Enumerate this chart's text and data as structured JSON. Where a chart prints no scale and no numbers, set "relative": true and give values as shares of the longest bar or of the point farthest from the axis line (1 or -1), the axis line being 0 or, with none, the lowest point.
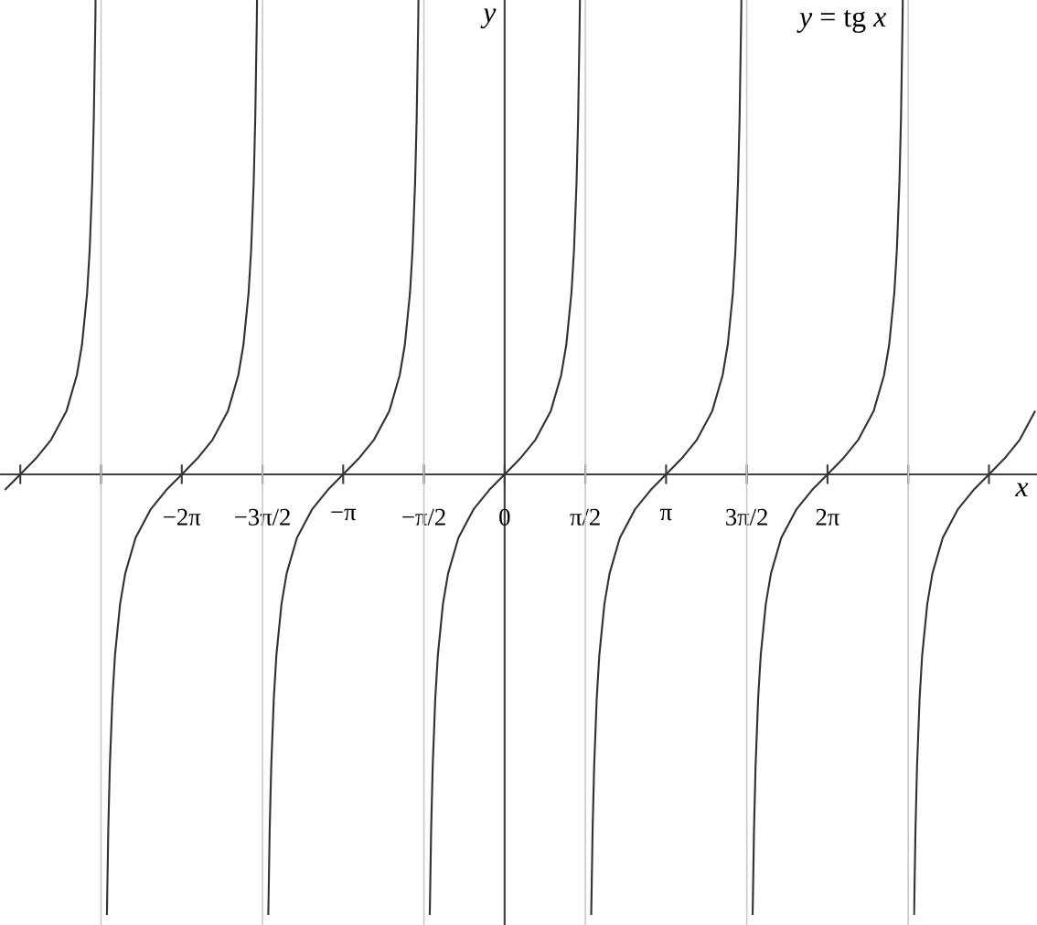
{
  "chart_data": {
    "type": "line",
    "title": "*y* = tg *x*",
    "xlabel": "*x*",
    "ylabel": "*y*",
    "relative": true,
    "xlim": [
      -9.82,
      10.36
    ],
    "xticks": [
      {
        "value": -9.425,
        "label": null
      },
      {
        "value": -7.854,
        "label": null
      },
      {
        "value": -6.283,
        "label": "−2π"
      },
      {
        "value": -4.712,
        "label": "−3π/2"
      },
      {
        "value": -3.142,
        "label": "−π"
      },
      {
        "value": -1.571,
        "label": "−π/2"
      },
      {
        "value": 0,
        "label": "0"
      },
      {
        "value": 1.571,
        "label": "π/2"
      },
      {
        "value": 3.142,
        "label": "π"
      },
      {
        "value": 4.712,
        "label": "3π/2"
      },
      {
        "value": 6.283,
        "label": "2π"
      },
      {
        "value": 7.854,
        "label": null
      },
      {
        "value": 9.425,
        "label": null
      }
    ],
    "ref_lines": [
      {
        "axis": "x",
        "value": -7.854,
        "color": "#c8c8c8"
      },
      {
        "axis": "x",
        "value": -4.712,
        "color": "#c8c8c8"
      },
      {
        "axis": "x",
        "value": -1.571,
        "color": "#c8c8c8"
      },
      {
        "axis": "x",
        "value": 1.571,
        "color": "#c8c8c8"
      },
      {
        "axis": "x",
        "value": 4.712,
        "color": "#c8c8c8"
      },
      {
        "axis": "x",
        "value": 7.854,
        "color": "#c8c8c8"
      }
    ],
    "series": [
      {
        "color": "#333333",
        "x": [
          -9.725,
          -9.425,
          -9.125,
          -8.825,
          -8.525,
          -8.325,
          -8.225,
          -8.125,
          -8.075,
          -8.025,
          -7.995,
          -7.965,
          -7.96
        ],
        "values": [
          -0.033,
          0,
          0.033,
          0.073,
          0.134,
          0.209,
          0.273,
          0.382,
          0.473,
          0.616,
          0.749,
          0.953,
          1
        ]
      },
      {
        "color": "#333333",
        "x": [
          -7.74,
          -7.713,
          -7.683,
          -7.633,
          -7.583,
          -7.483,
          -7.383,
          -7.183,
          -6.883,
          -6.583,
          -6.283,
          -5.983,
          -5.683,
          -5.383,
          -5.183,
          -5.083,
          -4.983,
          -4.933,
          -4.883,
          -4.853,
          -4.823,
          -4.818
        ],
        "values": [
          -0.929,
          -0.749,
          -0.616,
          -0.473,
          -0.382,
          -0.273,
          -0.209,
          -0.134,
          -0.073,
          -0.033,
          0,
          0.033,
          0.073,
          0.134,
          0.209,
          0.273,
          0.382,
          0.473,
          0.616,
          0.749,
          0.953,
          1
        ]
      },
      {
        "color": "#333333",
        "x": [
          -4.599,
          -4.572,
          -4.542,
          -4.492,
          -4.442,
          -4.342,
          -4.242,
          -4.042,
          -3.742,
          -3.442,
          -3.142,
          -2.842,
          -2.542,
          -2.242,
          -2.042,
          -1.942,
          -1.842,
          -1.792,
          -1.742,
          -1.712,
          -1.682,
          -1.677
        ],
        "values": [
          -0.929,
          -0.749,
          -0.616,
          -0.473,
          -0.382,
          -0.273,
          -0.209,
          -0.134,
          -0.073,
          -0.033,
          0,
          0.033,
          0.073,
          0.134,
          0.209,
          0.273,
          0.382,
          0.473,
          0.616,
          0.749,
          0.953,
          1
        ]
      },
      {
        "color": "#333333",
        "x": [
          -1.457,
          -1.43,
          -1.4,
          -1.35,
          -1.3,
          -1.2,
          -1.1,
          -0.9,
          -0.6,
          -0.3,
          0,
          0.3,
          0.6,
          0.9,
          1.1,
          1.2,
          1.3,
          1.35,
          1.4,
          1.43,
          1.46,
          1.465
        ],
        "values": [
          -0.929,
          -0.749,
          -0.616,
          -0.473,
          -0.382,
          -0.273,
          -0.209,
          -0.134,
          -0.073,
          -0.033,
          0,
          0.033,
          0.073,
          0.134,
          0.209,
          0.273,
          0.382,
          0.473,
          0.616,
          0.749,
          0.953,
          1
        ]
      },
      {
        "color": "#333333",
        "x": [
          1.685,
          1.712,
          1.742,
          1.792,
          1.842,
          1.942,
          2.042,
          2.242,
          2.542,
          2.842,
          3.142,
          3.442,
          3.742,
          4.042,
          4.242,
          4.342,
          4.442,
          4.492,
          4.542,
          4.572,
          4.602,
          4.607
        ],
        "values": [
          -0.929,
          -0.749,
          -0.616,
          -0.473,
          -0.382,
          -0.273,
          -0.209,
          -0.134,
          -0.073,
          -0.033,
          0,
          0.033,
          0.073,
          0.134,
          0.209,
          0.273,
          0.382,
          0.473,
          0.616,
          0.749,
          0.953,
          1
        ]
      },
      {
        "color": "#333333",
        "x": [
          4.826,
          4.853,
          4.883,
          4.933,
          4.983,
          5.083,
          5.183,
          5.383,
          5.683,
          5.983,
          6.283,
          6.583,
          6.883,
          7.183,
          7.383,
          7.483,
          7.583,
          7.633,
          7.683,
          7.713,
          7.743,
          7.748
        ],
        "values": [
          -0.929,
          -0.749,
          -0.616,
          -0.473,
          -0.382,
          -0.273,
          -0.209,
          -0.134,
          -0.073,
          -0.033,
          0,
          0.033,
          0.073,
          0.134,
          0.209,
          0.273,
          0.382,
          0.473,
          0.616,
          0.749,
          0.953,
          1
        ]
      },
      {
        "color": "#333333",
        "x": [
          7.968,
          7.995,
          8.025,
          8.075,
          8.125,
          8.225,
          8.325,
          8.525,
          8.825,
          9.125,
          9.425,
          9.725,
          10.025,
          10.325
        ],
        "values": [
          -0.929,
          -0.749,
          -0.616,
          -0.473,
          -0.382,
          -0.273,
          -0.209,
          -0.134,
          -0.073,
          -0.033,
          0,
          0.033,
          0.073,
          0.134
        ]
      }
    ]
  }
}
